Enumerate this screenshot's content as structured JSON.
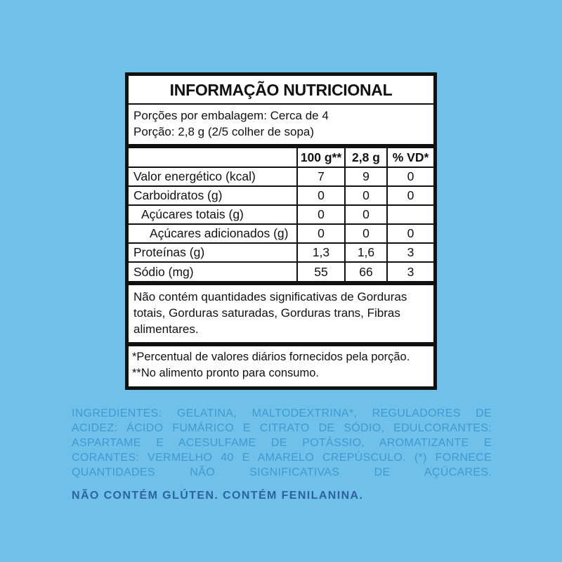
{
  "colors": {
    "background": "#6FC1E9",
    "panel_bg": "#FFFFFF",
    "panel_ink": "#111111",
    "ingredients_text": "#3F9AD0",
    "allergen_text": "#2C639E"
  },
  "panel": {
    "title": "INFORMAÇÃO NUTRICIONAL",
    "servings_per_package": "Porções por embalagem: Cerca de 4",
    "serving_size": "Porção: 2,8 g (2/5 colher de sopa)",
    "table": {
      "columns": [
        "100 g**",
        "2,8 g",
        "% VD*"
      ],
      "rows": [
        {
          "label": "Valor energético (kcal)",
          "per_100g": "7",
          "per_portion": "9",
          "vd": "0"
        },
        {
          "label": "Carboidratos (g)",
          "per_100g": "0",
          "per_portion": "0",
          "vd": "0"
        },
        {
          "label": "Açúcares totais (g)",
          "per_100g": "0",
          "per_portion": "0",
          "vd": ""
        },
        {
          "label": "Açúcares adicionados (g)",
          "per_100g": "0",
          "per_portion": "0",
          "vd": "0"
        },
        {
          "label": "Proteínas (g)",
          "per_100g": "1,3",
          "per_portion": "1,6",
          "vd": "3"
        },
        {
          "label": "Sódio (mg)",
          "per_100g": "55",
          "per_portion": "66",
          "vd": "3"
        }
      ]
    },
    "no_significant_note": "Não contém quantidades significativas de Gorduras totais, Gorduras saturadas, Gorduras trans, Fibras alimentares.",
    "footnote_vd": "*Percentual de valores diários fornecidos pela porção.",
    "footnote_prepared": "**No alimento pronto para consumo."
  },
  "ingredients": {
    "text": "INGREDIENTES: GELATINA, MALTODEXTRINA*, REGULADORES DE ACIDEZ: ÁCIDO FUMÁRICO E CITRATO DE SÓDIO, EDULCORANTES: ASPARTAME E ACESULFAME DE POTÁSSIO, AROMATIZANTE E CORANTES: VERMELHO 40 E AMARELO CREPÚSCULO. (*) FORNECE QUANTIDADES NÃO SIGNIFICATIVAS DE AÇÚCARES."
  },
  "allergen": {
    "text": "NÃO CONTÉM GLÚTEN. CONTÉM FENILANINA."
  }
}
